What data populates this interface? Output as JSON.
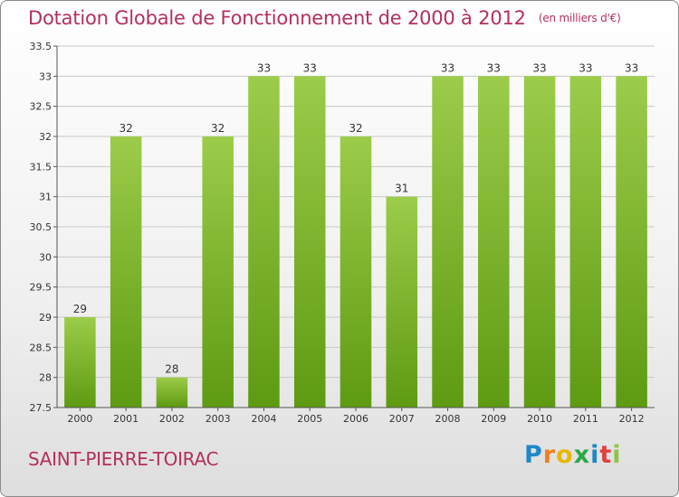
{
  "header": {
    "title": "Dotation Globale de Fonctionnement de 2000 à 2012",
    "unit": "(en milliers d'€)"
  },
  "footer": {
    "city": "SAINT-PIERRE-TOIRAC",
    "logo_text": "Proxiti",
    "logo_letters": [
      {
        "char": "P",
        "color": "#1e88c8"
      },
      {
        "char": "r",
        "color": "#f08020"
      },
      {
        "char": "o",
        "color": "#e8b800"
      },
      {
        "char": "x",
        "color": "#2aa84a"
      },
      {
        "char": "i",
        "color": "#1e88c8"
      },
      {
        "char": "t",
        "color": "#e04040"
      },
      {
        "char": "i",
        "color": "#8cc63f"
      }
    ]
  },
  "colors": {
    "bar_top": "#9ccc4a",
    "bar_bottom": "#5e9a12",
    "title": "#b3305c",
    "grid": "#c8c8c8"
  },
  "chart_data": {
    "type": "bar",
    "title": "Dotation Globale de Fonctionnement de 2000 à 2012",
    "subtitle": "(en milliers d'€)",
    "xlabel": "",
    "ylabel": "",
    "categories": [
      "2000",
      "2001",
      "2002",
      "2003",
      "2004",
      "2005",
      "2006",
      "2007",
      "2008",
      "2009",
      "2010",
      "2011",
      "2012"
    ],
    "values": [
      29,
      32,
      28,
      32,
      33,
      33,
      32,
      31,
      33,
      33,
      33,
      33,
      33
    ],
    "ylim": [
      27.5,
      33.5
    ],
    "yticks": [
      "27.5",
      "28",
      "28.5",
      "29",
      "29.5",
      "30",
      "30.5",
      "31",
      "31.5",
      "32",
      "32.5",
      "33",
      "33.5"
    ],
    "grid": true,
    "legend": "none"
  }
}
